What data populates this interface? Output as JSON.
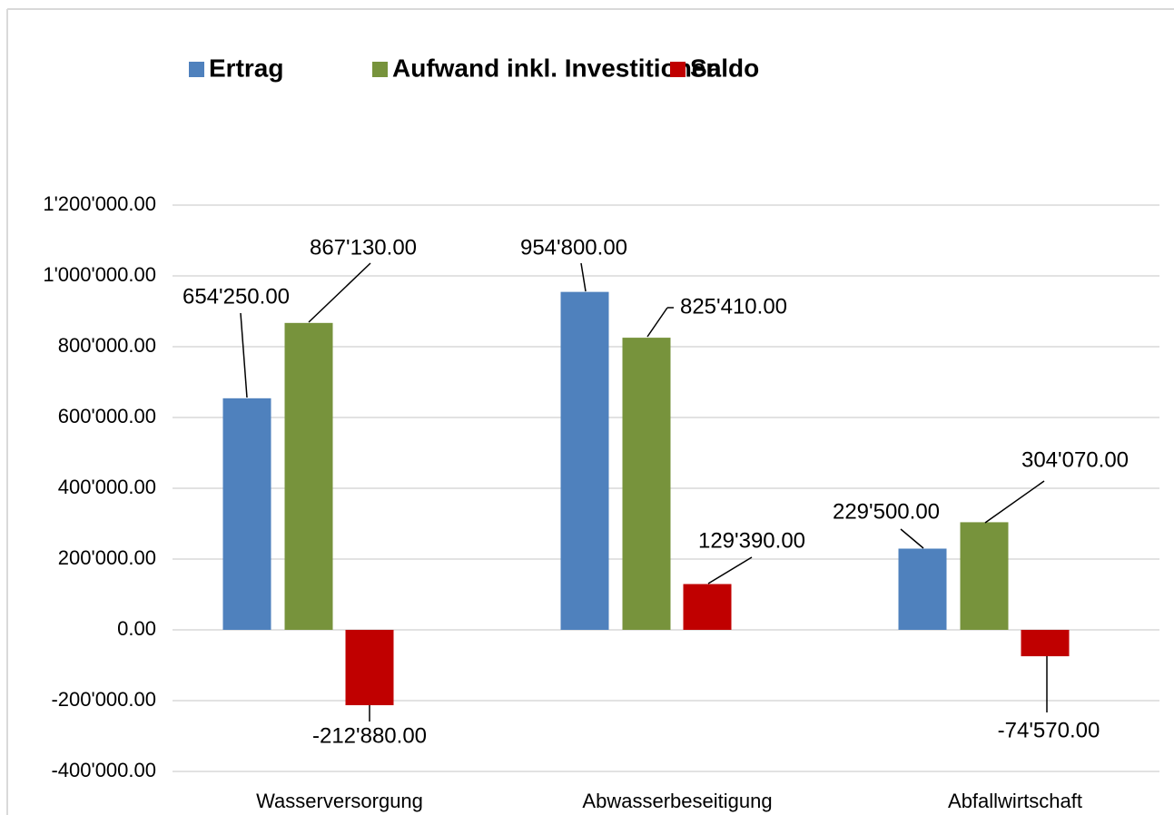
{
  "chart_data": {
    "type": "bar",
    "categories": [
      "Wasserversorgung",
      "Abwasserbeseitigung",
      "Abfallwirtschaft"
    ],
    "series": [
      {
        "name": "Ertrag",
        "color": "#4f81bd",
        "values": [
          654250,
          954800,
          229500
        ],
        "value_labels": [
          "654'250.00",
          "954'800.00",
          "229'500.00"
        ]
      },
      {
        "name": "Aufwand inkl. Investitionen",
        "color": "#77933c",
        "values": [
          867130,
          825410,
          304070
        ],
        "value_labels": [
          "867'130.00",
          "825'410.00",
          "304'070.00"
        ]
      },
      {
        "name": "Saldo",
        "color": "#c00000",
        "values": [
          -212880,
          129390,
          -74570
        ],
        "value_labels": [
          "-212'880.00",
          "129'390.00",
          "-74'570.00"
        ]
      }
    ],
    "ylim": [
      -400000,
      1200000
    ],
    "yticks": [
      {
        "value": -400000,
        "label": "-400'000.00"
      },
      {
        "value": -200000,
        "label": "-200'000.00"
      },
      {
        "value": 0,
        "label": "0.00"
      },
      {
        "value": 200000,
        "label": "200'000.00"
      },
      {
        "value": 400000,
        "label": "400'000.00"
      },
      {
        "value": 600000,
        "label": "600'000.00"
      },
      {
        "value": 800000,
        "label": "800'000.00"
      },
      {
        "value": 1000000,
        "label": "1'000'000.00"
      },
      {
        "value": 1200000,
        "label": "1'200'000.00"
      }
    ],
    "grid": true,
    "legend": "top"
  }
}
